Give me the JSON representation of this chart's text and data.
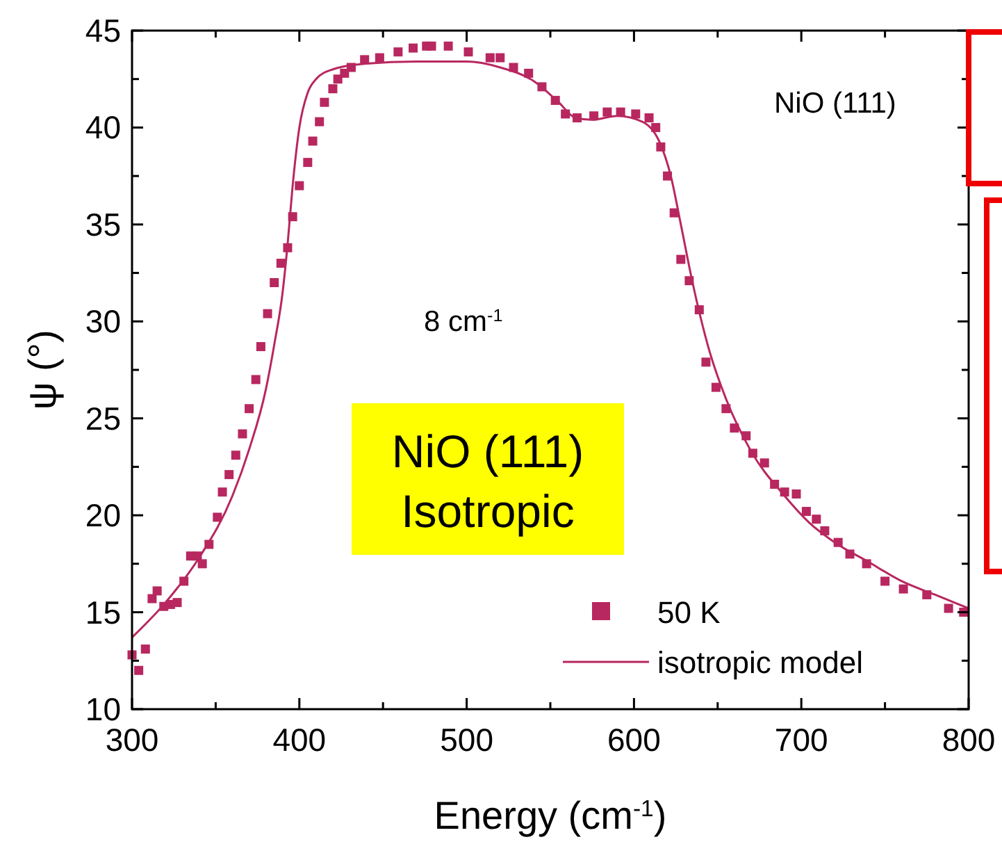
{
  "chart_data": {
    "type": "scatter",
    "xlabel": "Energy (cm$^{-1}$)",
    "ylabel": "ψ (°)",
    "xlim": [
      300,
      800
    ],
    "ylim": [
      10,
      45
    ],
    "xticks": [
      300,
      {
        "value": 350,
        "label": null
      },
      400,
      {
        "value": 450,
        "label": null
      },
      500,
      {
        "value": 550,
        "label": null
      },
      600,
      {
        "value": 650,
        "label": null
      },
      700,
      {
        "value": 750,
        "label": null
      },
      800
    ],
    "yticks": [
      10,
      {
        "value": 12.5,
        "label": null
      },
      15,
      {
        "value": 17.5,
        "label": null
      },
      20,
      {
        "value": 22.5,
        "label": null
      },
      25,
      {
        "value": 27.5,
        "label": null
      },
      30,
      {
        "value": 32.5,
        "label": null
      },
      35,
      {
        "value": 37.5,
        "label": null
      },
      40,
      {
        "value": 42.5,
        "label": null
      },
      45
    ],
    "grid": false,
    "legend": "bottom right",
    "annotations": [
      "8 cm$^{-1}$",
      "NiO (111)",
      "NiO (111)\nIsotropic"
    ],
    "series": [
      {
        "name": "50 K",
        "marker": "square",
        "color": "#b8275f",
        "x": [
          300,
          304,
          308,
          312,
          315,
          319,
          323,
          327,
          331,
          335,
          339,
          342,
          346,
          351,
          354,
          358,
          362,
          366,
          370,
          374,
          377,
          381,
          385,
          389,
          393,
          396,
          400,
          405,
          408,
          412,
          415,
          420,
          423,
          427,
          431,
          439,
          448,
          459,
          468,
          476,
          479,
          489,
          501,
          514,
          520,
          528,
          537,
          545,
          553,
          559,
          566,
          576,
          584,
          592,
          601,
          609,
          613,
          616,
          620,
          624,
          628,
          633,
          639,
          643,
          649,
          655,
          660,
          667,
          671,
          678,
          684,
          690,
          697,
          703,
          709,
          714,
          722,
          729,
          739,
          750,
          761,
          775,
          788,
          797
        ],
        "values": [
          12.8,
          12.0,
          13.1,
          15.7,
          16.1,
          15.3,
          15.4,
          15.5,
          16.6,
          17.9,
          17.9,
          17.5,
          18.5,
          19.9,
          21.2,
          22.1,
          23.1,
          24.2,
          25.5,
          27.0,
          28.7,
          30.4,
          32.0,
          33.0,
          33.8,
          35.4,
          37.0,
          38.2,
          39.3,
          40.3,
          41.3,
          42.0,
          42.5,
          42.8,
          43.1,
          43.5,
          43.6,
          43.9,
          44.1,
          44.2,
          44.2,
          44.2,
          43.9,
          43.6,
          43.6,
          43.1,
          42.8,
          42.1,
          41.4,
          40.7,
          40.5,
          40.6,
          40.8,
          40.8,
          40.7,
          40.5,
          40.0,
          39.0,
          37.5,
          35.6,
          33.2,
          32.1,
          30.6,
          27.9,
          26.6,
          25.5,
          24.5,
          24.1,
          23.2,
          22.7,
          21.6,
          21.2,
          21.1,
          20.2,
          19.8,
          19.2,
          18.6,
          18.0,
          17.5,
          16.6,
          16.2,
          15.9,
          15.2,
          15.0
        ]
      },
      {
        "name": "isotropic model",
        "type": "line",
        "line_style": "solid",
        "marker": "none",
        "color": "#b8275f",
        "x": [
          300,
          320,
          340,
          360,
          370,
          380,
          385,
          390,
          393,
          396,
          400,
          405,
          410,
          420,
          440,
          470,
          500,
          520,
          540,
          555,
          565,
          575,
          590,
          605,
          615,
          622,
          628,
          635,
          645,
          655,
          670,
          690,
          705,
          720,
          740,
          760,
          780,
          800
        ],
        "values": [
          13.7,
          15.5,
          17.8,
          21.0,
          23.4,
          26.5,
          28.8,
          31.5,
          34.0,
          37.0,
          40.0,
          41.8,
          42.5,
          43.0,
          43.3,
          43.4,
          43.4,
          43.1,
          42.4,
          41.3,
          40.5,
          40.4,
          40.6,
          40.3,
          39.3,
          37.5,
          35.0,
          32.0,
          28.5,
          26.0,
          23.3,
          21.0,
          19.6,
          18.6,
          17.6,
          16.6,
          15.9,
          15.2
        ]
      }
    ]
  }
}
